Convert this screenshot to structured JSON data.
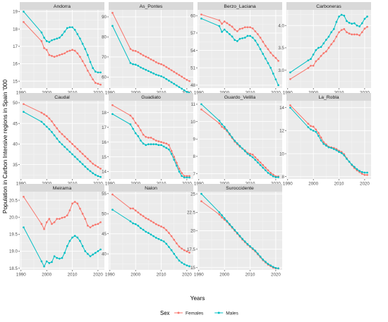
{
  "chart_data": {
    "type": "line",
    "layout": "facet-grid",
    "xlabel": "Years",
    "ylabel": "Population in Carbon Intensive regions in Spain '000",
    "legend": {
      "title": "Sex",
      "position": "bottom",
      "entries": [
        {
          "name": "Females",
          "color": "#F8766D"
        },
        {
          "name": "Males",
          "color": "#00BFC4"
        }
      ]
    },
    "years": [
      1991,
      1998,
      1999,
      2000,
      2001,
      2002,
      2003,
      2004,
      2005,
      2006,
      2007,
      2008,
      2009,
      2010,
      2011,
      2012,
      2013,
      2014,
      2015,
      2016,
      2017,
      2018,
      2019,
      2020,
      2021
    ],
    "xticks": [
      1990,
      2000,
      2010,
      2020
    ],
    "panels": [
      {
        "name": "Andorra",
        "ylim": [
          14.6,
          19.1
        ],
        "yticks": [
          15,
          16,
          17,
          18,
          19
        ],
        "series": [
          {
            "name": "Females",
            "values": [
              18.4,
              17.3,
              16.9,
              16.8,
              16.5,
              16.45,
              16.4,
              16.45,
              16.5,
              16.55,
              16.6,
              16.7,
              16.75,
              16.8,
              16.75,
              16.6,
              16.4,
              16.15,
              15.9,
              15.6,
              15.35,
              15.1,
              14.9,
              14.85,
              14.8
            ]
          },
          {
            "name": "Males",
            "values": [
              19.0,
              17.8,
              17.5,
              17.3,
              17.25,
              17.35,
              17.4,
              17.45,
              17.5,
              17.65,
              17.85,
              18.05,
              18.1,
              18.1,
              17.95,
              17.7,
              17.45,
              17.15,
              16.85,
              16.5,
              16.1,
              15.75,
              15.55,
              15.5,
              15.5
            ]
          }
        ]
      },
      {
        "name": "As_Pontes",
        "ylim": [
          54.5,
          93.5
        ],
        "yticks": [
          60,
          70,
          80,
          90
        ],
        "series": [
          {
            "name": "Females",
            "values": [
              92.0,
              74.0,
              73.2,
              73.0,
              72.4,
              71.6,
              70.8,
              70.2,
              69.6,
              68.8,
              68.2,
              67.4,
              66.8,
              66.4,
              65.8,
              65.0,
              64.2,
              63.4,
              62.6,
              61.8,
              61.0,
              60.2,
              59.4,
              58.6,
              58.0
            ]
          },
          {
            "name": "Males",
            "values": [
              85.5,
              67.0,
              66.4,
              66.2,
              65.6,
              64.8,
              64.2,
              63.6,
              63.0,
              62.4,
              61.8,
              61.2,
              60.8,
              60.4,
              59.8,
              59.0,
              58.2,
              57.4,
              56.6,
              55.8,
              55.0,
              54.2,
              53.4,
              52.6,
              52.0
            ]
          }
        ]
      },
      {
        "name": "Berzo_Laciana",
        "ylim": [
          47.5,
          61.0
        ],
        "yticks": [
          48,
          51,
          54,
          57,
          60
        ],
        "series": [
          {
            "name": "Females",
            "values": [
              60.2,
              59.2,
              58.6,
              59.0,
              58.7,
              58.4,
              58.1,
              57.6,
              57.3,
              57.7,
              57.8,
              58.0,
              58.0,
              58.0,
              57.8,
              57.3,
              56.8,
              56.2,
              55.5,
              54.8,
              54.2,
              53.6,
              53.1,
              52.7,
              52.2
            ]
          },
          {
            "name": "Males",
            "values": [
              59.5,
              58.2,
              57.2,
              57.6,
              57.2,
              56.8,
              56.4,
              55.8,
              55.6,
              56.0,
              56.1,
              56.2,
              56.5,
              56.5,
              56.2,
              55.7,
              55.0,
              54.2,
              53.4,
              52.6,
              51.8,
              51.0,
              50.0,
              49.0,
              48.0
            ]
          }
        ]
      },
      {
        "name": "Carboneras",
        "ylim": [
          2.6,
          4.35
        ],
        "yticks": [
          3.0,
          3.5,
          4.0
        ],
        "series": [
          {
            "name": "Females",
            "values": [
              2.8,
              3.05,
              3.1,
              3.1,
              3.2,
              3.25,
              3.32,
              3.38,
              3.42,
              3.5,
              3.58,
              3.65,
              3.75,
              3.85,
              3.9,
              3.92,
              3.85,
              3.82,
              3.8,
              3.8,
              3.8,
              3.78,
              3.85,
              3.93,
              3.97
            ]
          },
          {
            "name": "Males",
            "values": [
              2.95,
              3.22,
              3.25,
              3.35,
              3.45,
              3.5,
              3.52,
              3.6,
              3.68,
              3.75,
              3.85,
              3.92,
              4.08,
              4.2,
              4.24,
              4.22,
              4.1,
              4.06,
              4.04,
              4.05,
              4.0,
              3.98,
              4.05,
              4.15,
              4.2
            ]
          }
        ]
      },
      {
        "name": "Caudal",
        "ylim": [
          31.5,
          50.5
        ],
        "yticks": [
          35,
          40,
          45,
          50
        ],
        "series": [
          {
            "name": "Females",
            "values": [
              49.7,
              47.6,
              47.2,
              46.8,
              46.2,
              45.5,
              44.6,
              43.8,
              43.0,
              42.4,
              41.8,
              41.2,
              40.6,
              40.0,
              39.4,
              38.8,
              38.2,
              37.6,
              37.0,
              36.4,
              35.8,
              35.2,
              34.8,
              34.4,
              34.0
            ]
          },
          {
            "name": "Males",
            "values": [
              47.8,
              45.4,
              44.8,
              44.2,
              43.6,
              42.9,
              42.1,
              41.3,
              40.5,
              39.9,
              39.3,
              38.7,
              38.1,
              37.5,
              36.9,
              36.3,
              35.7,
              35.1,
              34.5,
              33.9,
              33.4,
              32.9,
              32.5,
              32.2,
              32.0
            ]
          }
        ]
      },
      {
        "name": "Guadiato",
        "ylim": [
          13.5,
          18.8
        ],
        "yticks": [
          14,
          15,
          16,
          17,
          18
        ],
        "series": [
          {
            "name": "Females",
            "values": [
              18.5,
              17.8,
              17.6,
              17.3,
              17.1,
              16.8,
              16.5,
              16.35,
              16.3,
              16.3,
              16.2,
              16.1,
              16.05,
              16.0,
              15.95,
              15.9,
              15.8,
              15.4,
              15.0,
              14.6,
              14.2,
              13.9,
              13.7,
              13.7,
              13.7
            ]
          },
          {
            "name": "Males",
            "values": [
              17.9,
              17.2,
              16.9,
              16.6,
              16.4,
              16.1,
              15.9,
              15.8,
              15.85,
              15.85,
              15.85,
              15.85,
              15.8,
              15.8,
              15.7,
              15.6,
              15.5,
              15.2,
              14.8,
              14.4,
              14.0,
              13.7,
              13.6,
              13.6,
              13.6
            ]
          }
        ]
      },
      {
        "name": "Guardo_Velilla",
        "ylim": [
          6.7,
          11.2
        ],
        "yticks": [
          7,
          8,
          9,
          10,
          11
        ],
        "series": [
          {
            "name": "Females",
            "values": [
              10.7,
              9.9,
              9.7,
              9.6,
              9.45,
              9.25,
              9.05,
              8.85,
              8.7,
              8.55,
              8.45,
              8.35,
              8.2,
              8.15,
              8.1,
              7.95,
              7.8,
              7.65,
              7.5,
              7.35,
              7.2,
              7.05,
              6.95,
              6.85,
              6.85
            ]
          },
          {
            "name": "Males",
            "values": [
              11.0,
              10.05,
              9.85,
              9.7,
              9.5,
              9.3,
              9.1,
              8.9,
              8.75,
              8.6,
              8.45,
              8.3,
              8.15,
              8.05,
              7.95,
              7.8,
              7.65,
              7.5,
              7.35,
              7.2,
              7.05,
              6.95,
              6.85,
              6.8,
              6.8
            ]
          }
        ]
      },
      {
        "name": "La_Robla",
        "ylim": [
          7.8,
          14.6
        ],
        "yticks": [
          8,
          10,
          12,
          14
        ],
        "series": [
          {
            "name": "Females",
            "values": [
              14.2,
              12.6,
              12.4,
              12.35,
              12.1,
              11.8,
              11.4,
              11.0,
              10.8,
              10.6,
              10.55,
              10.5,
              10.4,
              10.25,
              10.15,
              9.95,
              9.6,
              9.3,
              9.0,
              8.75,
              8.55,
              8.4,
              8.25,
              8.15,
              8.15
            ]
          },
          {
            "name": "Males",
            "values": [
              14.0,
              12.3,
              12.1,
              12.0,
              11.9,
              11.55,
              11.15,
              10.85,
              10.7,
              10.55,
              10.5,
              10.4,
              10.3,
              10.15,
              10.05,
              9.85,
              9.55,
              9.3,
              9.05,
              8.85,
              8.65,
              8.5,
              8.4,
              8.35,
              8.35
            ]
          }
        ]
      },
      {
        "name": "Meirama",
        "ylim": [
          18.45,
          20.75
        ],
        "yticks": [
          18.5,
          19.0,
          19.5,
          20.0,
          20.5
        ],
        "series": [
          {
            "name": "Females",
            "values": [
              20.6,
              19.8,
              19.65,
              19.85,
              19.95,
              19.8,
              19.85,
              19.95,
              19.95,
              19.98,
              20.0,
              20.05,
              20.2,
              20.4,
              20.45,
              20.4,
              20.25,
              20.1,
              19.95,
              19.75,
              19.7,
              19.75,
              19.78,
              19.8,
              19.85
            ]
          },
          {
            "name": "Males",
            "values": [
              19.7,
              18.7,
              18.55,
              18.7,
              18.65,
              18.68,
              18.85,
              18.8,
              18.78,
              18.8,
              18.95,
              19.15,
              19.3,
              19.4,
              19.45,
              19.4,
              19.3,
              19.15,
              19.0,
              18.92,
              18.85,
              18.9,
              18.95,
              19.0,
              19.05
            ]
          }
        ]
      },
      {
        "name": "Nalon",
        "ylim": [
          36.0,
          55.5
        ],
        "yticks": [
          40,
          45,
          50,
          55
        ],
        "series": [
          {
            "name": "Females",
            "values": [
              54.8,
              51.3,
              51.3,
              50.8,
              50.3,
              49.8,
              49.4,
              48.9,
              48.6,
              48.2,
              47.8,
              47.4,
              47.1,
              46.8,
              46.5,
              45.9,
              45.2,
              44.4,
              43.5,
              42.6,
              41.8,
              41.3,
              40.9,
              40.6,
              40.3
            ]
          },
          {
            "name": "Males",
            "values": [
              51.0,
              48.1,
              47.6,
              47.4,
              47.0,
              46.4,
              46.0,
              45.5,
              45.2,
              44.8,
              44.4,
              44.0,
              43.7,
              43.4,
              43.1,
              42.5,
              41.7,
              40.9,
              40.0,
              39.1,
              38.3,
              37.8,
              37.4,
              37.1,
              36.9
            ]
          }
        ]
      },
      {
        "name": "Suroccidente",
        "ylim": [
          14.7,
          25.3
        ],
        "yticks": [
          15.0,
          17.5,
          20.0,
          22.5,
          25.0
        ],
        "series": [
          {
            "name": "Females",
            "values": [
              24.0,
              22.2,
              21.8,
              21.5,
              21.2,
              20.8,
              20.4,
              20.0,
              19.6,
              19.2,
              18.8,
              18.45,
              18.1,
              17.8,
              17.5,
              17.2,
              16.8,
              16.4,
              16.0,
              15.7,
              15.4,
              15.2,
              15.0,
              14.9,
              14.9
            ]
          },
          {
            "name": "Males",
            "values": [
              25.0,
              22.5,
              22.1,
              21.7,
              21.3,
              20.9,
              20.5,
              20.1,
              19.7,
              19.3,
              18.9,
              18.55,
              18.2,
              17.9,
              17.6,
              17.3,
              16.9,
              16.5,
              16.1,
              15.8,
              15.5,
              15.3,
              15.1,
              14.95,
              14.9
            ]
          }
        ]
      }
    ]
  }
}
